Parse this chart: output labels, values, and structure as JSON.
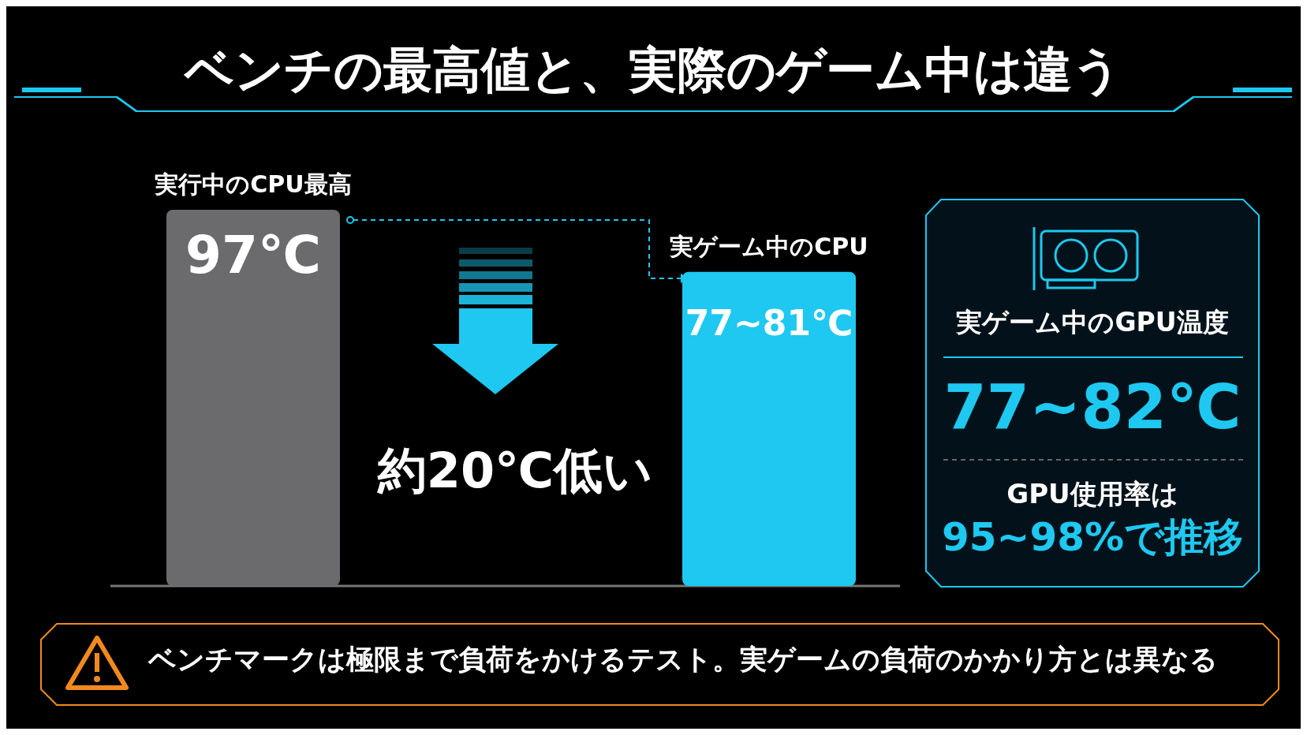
{
  "chart_data": {
    "type": "bar",
    "title": "ベンチの最高値と、実際のゲーム中は違う",
    "categories": [
      "実行中のCPU最高",
      "実ゲーム中のCPU"
    ],
    "values": [
      97,
      81
    ],
    "colors": [
      "#6b6b6e",
      "#1ec8f0"
    ],
    "value_labels": [
      "97℃",
      "77~81℃"
    ],
    "annotations": [
      "約20℃低い",
      "実ゲーム中のGPU温度",
      "77~82℃",
      "GPU使用率は",
      "95~98%で推移",
      "ベンチマークは極限まで負荷をかけるテスト。実ゲームの負荷のかかり方とは異なる"
    ]
  }
}
